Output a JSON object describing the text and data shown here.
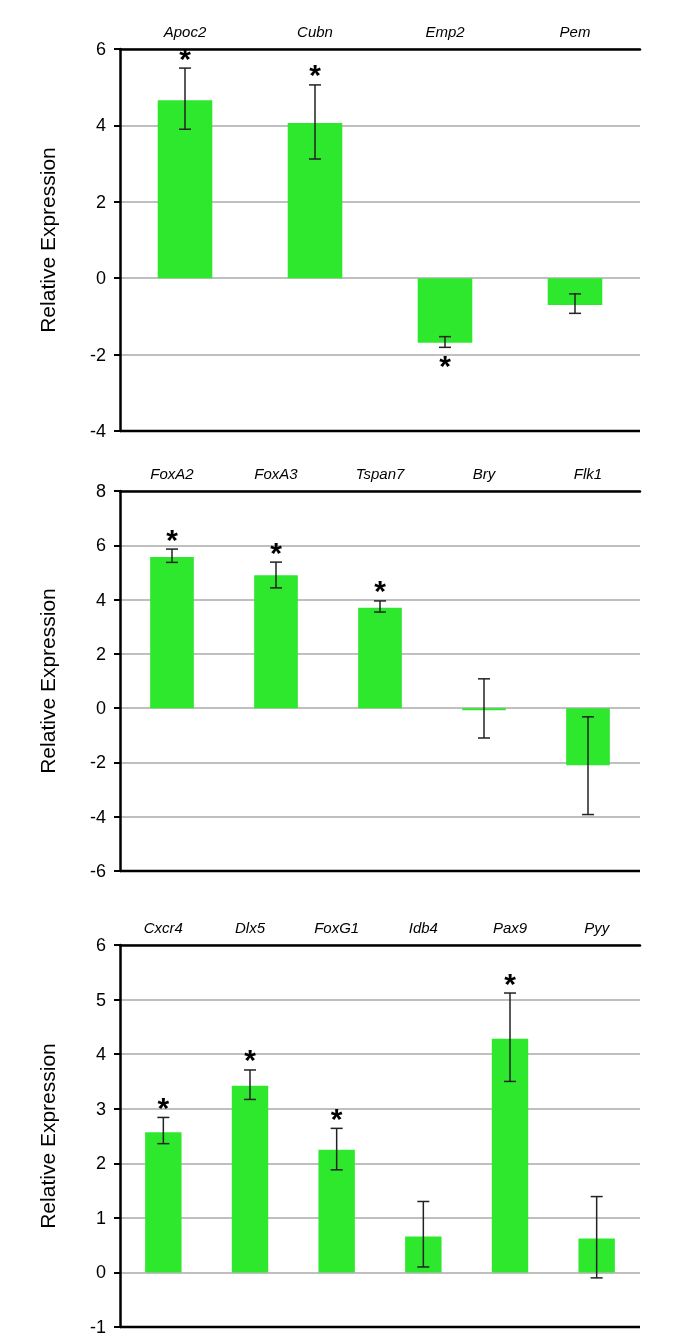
{
  "chart_data": [
    {
      "type": "bar",
      "ylabel": "Relative Expression",
      "categories": [
        "Apoc2",
        "Cubn",
        "Emp2",
        "Pem"
      ],
      "values": [
        4.66,
        4.06,
        -1.69,
        -0.7
      ],
      "color": "#2ee82e",
      "errors": [
        [
          3.9,
          5.5
        ],
        [
          3.12,
          5.06
        ],
        [
          -1.81,
          -1.53
        ],
        [
          -0.92,
          -0.41
        ]
      ],
      "ylim": [
        -4,
        6
      ],
      "yticks": [
        -4,
        -2,
        0,
        2,
        4,
        6
      ],
      "grid": "y",
      "annotations": [
        {
          "text": "*",
          "x": "Apoc2",
          "y": 5.5
        },
        {
          "text": "*",
          "x": "Cubn",
          "y": 5.06
        },
        {
          "text": "*",
          "x": "Emp2",
          "y": -1.81
        }
      ]
    },
    {
      "type": "bar",
      "ylabel": "Relative Expression",
      "categories": [
        "FoxA2",
        "FoxA3",
        "Tspan7",
        "Bry",
        "Flk1"
      ],
      "values": [
        5.57,
        4.9,
        3.7,
        -0.08,
        -2.1
      ],
      "color": "#2ee82e",
      "errors": [
        [
          5.37,
          5.86
        ],
        [
          4.43,
          5.38
        ],
        [
          3.54,
          3.95
        ],
        [
          -1.1,
          1.08
        ],
        [
          -3.92,
          -0.32
        ]
      ],
      "ylim": [
        -6,
        8
      ],
      "yticks": [
        -6,
        -4,
        -2,
        0,
        2,
        4,
        6,
        8
      ],
      "grid": "y",
      "annotations": [
        {
          "text": "*",
          "x": "FoxA2",
          "y": 5.86
        },
        {
          "text": "*",
          "x": "FoxA3",
          "y": 5.38
        },
        {
          "text": "*",
          "x": "Tspan7",
          "y": 3.95
        }
      ]
    },
    {
      "type": "bar",
      "ylabel": "Relative Expression",
      "categories": [
        "Cxcr4",
        "Dlx5",
        "FoxG1",
        "Idb4",
        "Pax9",
        "Pyy"
      ],
      "values": [
        2.57,
        3.42,
        2.25,
        0.66,
        4.28,
        0.62
      ],
      "color": "#2ee82e",
      "errors": [
        [
          2.36,
          2.84
        ],
        [
          3.17,
          3.71
        ],
        [
          1.88,
          2.64
        ],
        [
          0.1,
          1.3
        ],
        [
          3.5,
          5.12
        ],
        [
          -0.1,
          1.39
        ]
      ],
      "ylim": [
        -1,
        6
      ],
      "yticks": [
        -1,
        0,
        1,
        2,
        3,
        4,
        5,
        6
      ],
      "grid": "y",
      "annotations": [
        {
          "text": "*",
          "x": "Cxcr4",
          "y": 2.84
        },
        {
          "text": "*",
          "x": "Dlx5",
          "y": 3.71
        },
        {
          "text": "*",
          "x": "FoxG1",
          "y": 2.64
        },
        {
          "text": "*",
          "x": "Pax9",
          "y": 5.12
        }
      ]
    }
  ]
}
